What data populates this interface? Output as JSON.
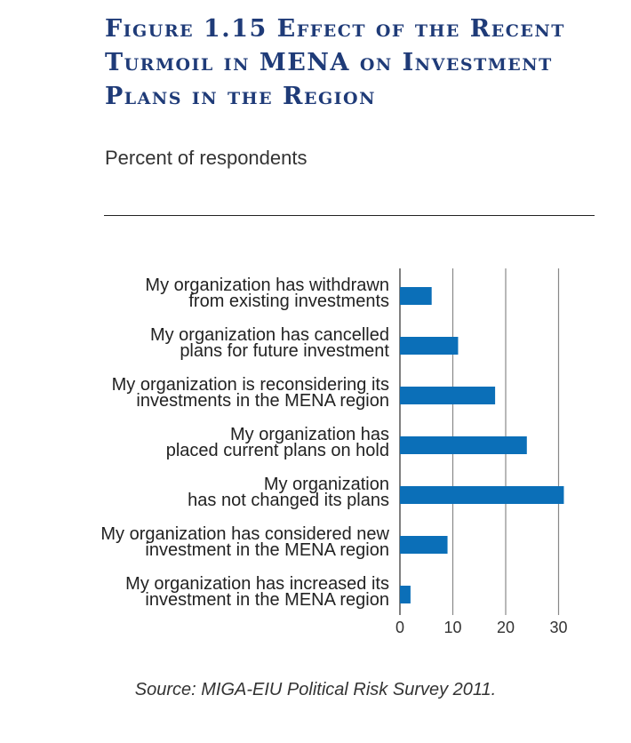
{
  "title_lines": [
    "Figure 1.15 Effect of the Recent",
    "Turmoil in MENA on Investment",
    "Plans in the Region"
  ],
  "subtitle": "Percent of respondents",
  "source": "Source: MIGA-EIU Political Risk Survey 2011.",
  "colors": {
    "bar": "#0b6fb8",
    "title": "#1f3b78",
    "grid": "#888888"
  },
  "chart_data": {
    "type": "bar",
    "orientation": "horizontal",
    "title": "Figure 1.15 Effect of the Recent Turmoil in MENA on Investment Plans in the Region",
    "xlabel": "Percent of respondents",
    "ylabel": "",
    "xlim": [
      0,
      30
    ],
    "xticks": [
      0,
      10,
      20,
      30
    ],
    "grid": true,
    "categories": [
      [
        "My organization has withdrawn",
        "from existing investments"
      ],
      [
        "My organization has cancelled",
        "plans for future investment"
      ],
      [
        "My organization is reconsidering its",
        "investments in the MENA region"
      ],
      [
        "My organization has",
        "placed current plans on hold"
      ],
      [
        "My organization",
        "has not changed its plans"
      ],
      [
        "My organization has considered new",
        "investment in the MENA region"
      ],
      [
        "My organization has increased its",
        "investment in the MENA region"
      ]
    ],
    "values": [
      6,
      11,
      18,
      24,
      31,
      9,
      2
    ]
  }
}
